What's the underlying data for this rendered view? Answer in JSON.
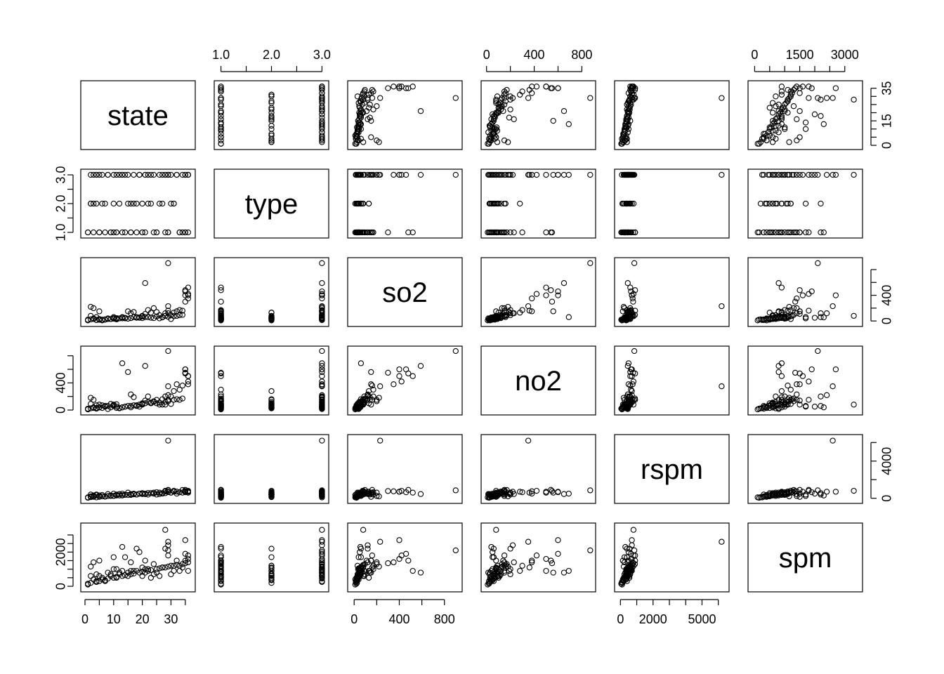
{
  "chart_data": {
    "type": "scatter",
    "subtype": "scatterplot-matrix",
    "variables": [
      "state",
      "type",
      "so2",
      "no2",
      "rspm",
      "spm"
    ],
    "axes": {
      "state": {
        "lim": [
          0,
          37
        ],
        "ticks": [
          0,
          15,
          35
        ],
        "bottom_ticks": [
          0,
          10,
          20,
          30
        ],
        "tick_labels": [
          "0",
          "10",
          "20",
          "30"
        ],
        "side_tick_labels": [
          "0",
          "15",
          "35"
        ]
      },
      "type": {
        "lim": [
          0.95,
          3.05
        ],
        "ticks": [
          1,
          2,
          3
        ],
        "tick_labels": [
          "1.0",
          "2.0",
          "3.0"
        ]
      },
      "so2": {
        "lim": [
          -20,
          920
        ],
        "ticks": [
          0,
          400,
          800
        ],
        "side_ticks": [
          0,
          400
        ],
        "tick_labels": [
          "0",
          "400",
          "800"
        ],
        "side_tick_labels": [
          "0",
          "400"
        ]
      },
      "no2": {
        "lim": [
          -10,
          880
        ],
        "ticks": [
          0,
          400,
          800
        ],
        "side_ticks": [
          0,
          400
        ],
        "tick_labels": [
          "0",
          "400",
          "800"
        ],
        "side_tick_labels": [
          "0",
          "400"
        ]
      },
      "rspm": {
        "lim": [
          -100,
          6400
        ],
        "ticks": [
          0,
          2000,
          5000
        ],
        "side_ticks": [
          0,
          4000
        ],
        "tick_labels": [
          "0",
          "2000",
          "5000"
        ],
        "side_tick_labels": [
          "0",
          "4000"
        ]
      },
      "spm": {
        "lim": [
          -80,
          3450
        ],
        "ticks": [
          0,
          1500,
          3000
        ],
        "side_ticks": [
          0,
          2000
        ],
        "tick_labels": [
          "0",
          "1500",
          "3000"
        ],
        "side_tick_labels": [
          "0",
          "1000",
          "2000"
        ]
      }
    },
    "sample_points": {
      "state": [
        1,
        2,
        2,
        3,
        3,
        4,
        4,
        5,
        5,
        6,
        7,
        8,
        9,
        10,
        10,
        11,
        11,
        12,
        13,
        13,
        14,
        15,
        16,
        16,
        17,
        18,
        19,
        20,
        20,
        21,
        21,
        22,
        23,
        24,
        25,
        26,
        27,
        28,
        28,
        29,
        29,
        30,
        31,
        32,
        33,
        34,
        35,
        35,
        36,
        36,
        36,
        1,
        3,
        6,
        9,
        12,
        15,
        18,
        21,
        24,
        27,
        30,
        33,
        36,
        2,
        5,
        8,
        11,
        14,
        17,
        20,
        23,
        26,
        29,
        32,
        35,
        4,
        7,
        10,
        13,
        16,
        19,
        22,
        25,
        28,
        31,
        34,
        29,
        29,
        35
      ],
      "type": [
        1,
        3,
        2,
        1,
        3,
        2,
        3,
        1,
        3,
        2,
        1,
        3,
        1,
        2,
        3,
        1,
        3,
        2,
        1,
        3,
        1,
        3,
        2,
        1,
        3,
        2,
        3,
        1,
        2,
        3,
        1,
        3,
        2,
        3,
        1,
        3,
        2,
        1,
        3,
        3,
        1,
        3,
        2,
        3,
        1,
        3,
        1,
        3,
        3,
        1,
        3,
        1,
        2,
        3,
        1,
        3,
        2,
        1,
        3,
        1,
        3,
        2,
        1,
        3,
        2,
        1,
        3,
        1,
        3,
        2,
        1,
        3,
        2,
        1,
        3,
        1,
        3,
        2,
        1,
        3,
        1,
        3,
        2,
        1,
        3,
        2,
        1,
        3,
        3,
        3
      ],
      "so2": [
        20,
        220,
        80,
        40,
        200,
        60,
        15,
        150,
        30,
        10,
        25,
        40,
        30,
        60,
        45,
        25,
        35,
        40,
        55,
        60,
        40,
        150,
        45,
        120,
        140,
        60,
        50,
        80,
        45,
        590,
        110,
        170,
        130,
        200,
        140,
        90,
        60,
        120,
        80,
        120,
        160,
        90,
        130,
        150,
        170,
        160,
        480,
        400,
        420,
        520,
        350,
        10,
        30,
        20,
        30,
        40,
        35,
        50,
        60,
        45,
        55,
        30,
        90,
        400,
        25,
        18,
        30,
        45,
        50,
        60,
        70,
        50,
        40,
        65,
        80,
        300,
        15,
        20,
        35,
        40,
        45,
        55,
        60,
        70,
        80,
        75,
        95,
        230,
        900,
        460
      ],
      "no2": [
        20,
        180,
        90,
        30,
        150,
        70,
        20,
        80,
        40,
        30,
        60,
        15,
        40,
        60,
        80,
        30,
        50,
        25,
        40,
        690,
        50,
        560,
        40,
        230,
        190,
        60,
        50,
        80,
        100,
        650,
        140,
        200,
        100,
        130,
        150,
        110,
        160,
        200,
        80,
        220,
        150,
        200,
        280,
        380,
        300,
        360,
        540,
        600,
        420,
        500,
        380,
        10,
        40,
        70,
        90,
        30,
        60,
        70,
        100,
        120,
        80,
        90,
        150,
        500,
        25,
        40,
        60,
        85,
        50,
        70,
        90,
        110,
        80,
        130,
        160,
        550,
        30,
        50,
        70,
        40,
        60,
        80,
        120,
        100,
        120,
        150,
        170,
        350,
        870,
        600
      ],
      "rspm": [
        50,
        200,
        400,
        300,
        250,
        350,
        400,
        150,
        300,
        350,
        200,
        450,
        300,
        250,
        500,
        400,
        350,
        450,
        300,
        500,
        400,
        600,
        350,
        450,
        500,
        400,
        500,
        450,
        550,
        450,
        500,
        400,
        550,
        600,
        400,
        450,
        500,
        550,
        800,
        700,
        900,
        600,
        700,
        500,
        650,
        600,
        900,
        700,
        800,
        600,
        750,
        100,
        150,
        200,
        250,
        300,
        350,
        400,
        450,
        500,
        550,
        600,
        650,
        700,
        120,
        180,
        240,
        300,
        360,
        420,
        480,
        540,
        600,
        660,
        720,
        780,
        90,
        170,
        250,
        330,
        410,
        490,
        570,
        650,
        730,
        810,
        890,
        6200,
        850,
        650
      ],
      "spm": [
        150,
        1150,
        600,
        400,
        1400,
        700,
        300,
        1500,
        600,
        400,
        300,
        800,
        600,
        1700,
        1000,
        500,
        1000,
        700,
        2300,
        900,
        1700,
        800,
        900,
        1400,
        900,
        2200,
        2000,
        1100,
        600,
        800,
        1500,
        1000,
        500,
        1300,
        800,
        600,
        1100,
        2200,
        3300,
        2400,
        1800,
        700,
        900,
        1500,
        1200,
        1100,
        1500,
        2700,
        1800,
        900,
        1400,
        100,
        400,
        500,
        700,
        800,
        600,
        900,
        1000,
        700,
        1100,
        1200,
        900,
        1600,
        200,
        300,
        450,
        550,
        650,
        750,
        850,
        950,
        1050,
        1150,
        1250,
        1350,
        250,
        350,
        500,
        600,
        700,
        800,
        900,
        1000,
        1100,
        1200,
        1300,
        2600,
        2100,
        1900
      ]
    }
  },
  "labels": {
    "state": "state",
    "type": "type",
    "so2": "so2",
    "no2": "no2",
    "rspm": "rspm",
    "spm": "spm"
  }
}
